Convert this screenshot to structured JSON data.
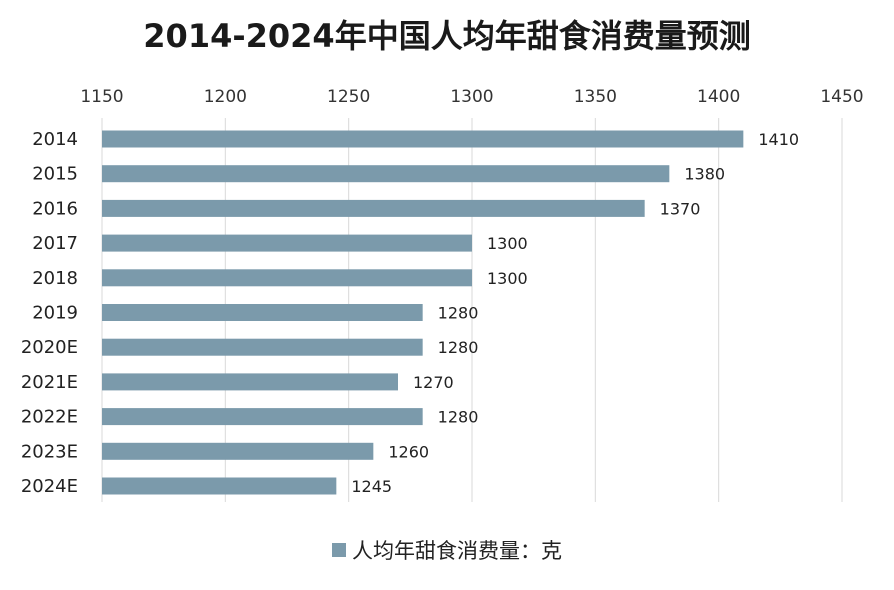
{
  "chart_data": {
    "type": "bar",
    "orientation": "horizontal",
    "title": "2014-2024年中国人均年甜食消费量预测",
    "categories": [
      "2014",
      "2015",
      "2016",
      "2017",
      "2018",
      "2019",
      "2020E",
      "2021E",
      "2022E",
      "2023E",
      "2024E"
    ],
    "series": [
      {
        "name": "人均年甜食消费量：克",
        "values": [
          1410,
          1380,
          1370,
          1300,
          1300,
          1280,
          1280,
          1270,
          1280,
          1260,
          1245
        ]
      }
    ],
    "xlim": [
      1150,
      1450
    ],
    "xticks": [
      1150,
      1200,
      1250,
      1300,
      1350,
      1400,
      1450
    ],
    "x_axis_position": "top",
    "grid": true,
    "data_labels": true,
    "legend_position": "bottom",
    "bar_color": "#7b9aab",
    "grid_color": "#d9d9d9"
  }
}
